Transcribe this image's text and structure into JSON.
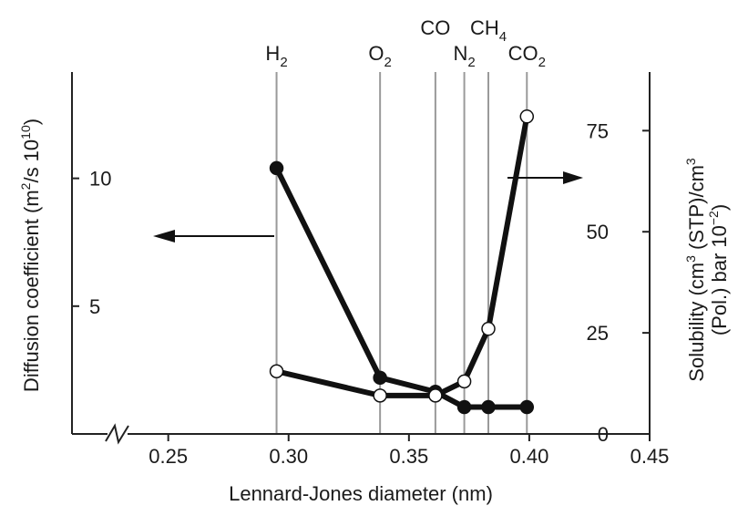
{
  "chart_data": {
    "type": "line",
    "xlabel": "Lennard-Jones diameter (nm)",
    "xlim": [
      0.21,
      0.45
    ],
    "x_ticks": [
      "0.25",
      "0.30",
      "0.35",
      "0.40",
      "0.45"
    ],
    "x_tick_values": [
      0.25,
      0.3,
      0.35,
      0.4,
      0.45
    ],
    "x_axis_break": true,
    "y_left": {
      "label_main": "Diffusion coefficient (m",
      "label_sup1": "2",
      "label_mid": "/s 10",
      "label_sup2": "10",
      "label_end": ")",
      "lim": [
        0,
        14.16
      ],
      "ticks": [
        "5",
        "10"
      ],
      "tick_values": [
        5,
        10
      ]
    },
    "y_right": {
      "label_line1_a": "Solubility (cm",
      "label_line1_sup1": "3",
      "label_line1_b": " (STP)/cm",
      "label_line1_sup2": "3",
      "label_line2_a": "(Pol.) bar 10",
      "label_line2_sup": "−2",
      "label_line2_b": ")",
      "lim": [
        0,
        89.5
      ],
      "ticks": [
        "0",
        "25",
        "50",
        "75"
      ],
      "tick_values": [
        0,
        25,
        50,
        75
      ]
    },
    "gases": [
      {
        "name": "H",
        "sub": "2",
        "x": 0.295
      },
      {
        "name": "O",
        "sub": "2",
        "x": 0.338
      },
      {
        "name": "CO",
        "sub": "",
        "x": 0.361
      },
      {
        "name": "N",
        "sub": "2",
        "x": 0.373
      },
      {
        "name": "CH",
        "sub": "4",
        "x": 0.383
      },
      {
        "name": "CO",
        "sub": "2",
        "x": 0.399
      }
    ],
    "series": [
      {
        "axis": "left",
        "marker": "filled",
        "x": [
          0.295,
          0.338,
          0.361,
          0.373,
          0.383,
          0.399
        ],
        "y": [
          10.4,
          2.2,
          1.65,
          1.05,
          1.05,
          1.05
        ]
      },
      {
        "axis": "right",
        "marker": "open",
        "x": [
          0.295,
          0.338,
          0.361,
          0.373,
          0.383,
          0.399
        ],
        "y": [
          15.5,
          9.5,
          9.5,
          13.0,
          26.0,
          78.5
        ]
      }
    ],
    "grid": false,
    "legend": "none"
  }
}
